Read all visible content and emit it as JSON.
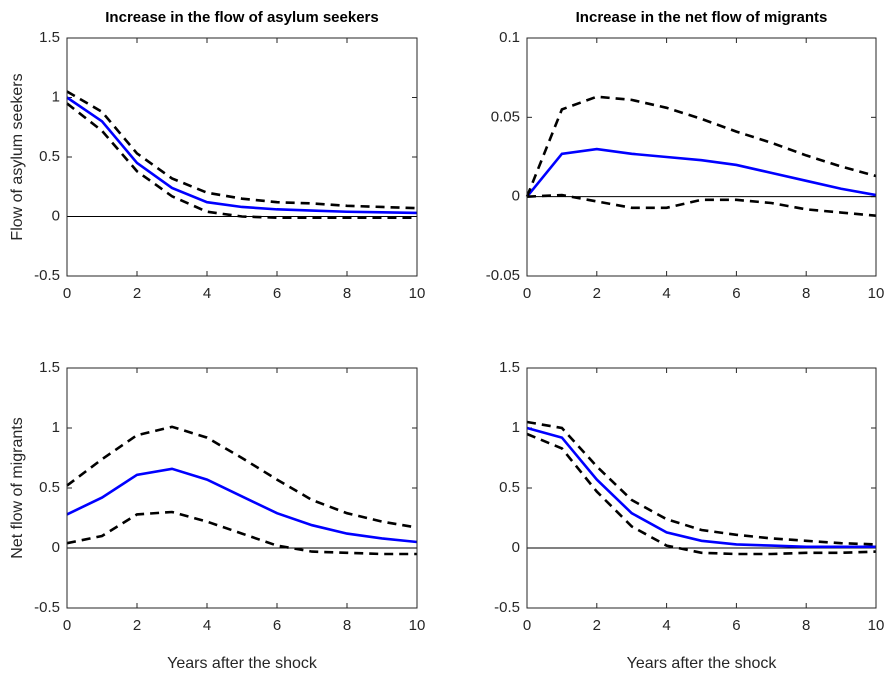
{
  "chart_data": [
    {
      "type": "line",
      "title": "Increase in the flow of asylum seekers",
      "y_label": "Flow of asylum seekers",
      "x": [
        0,
        1,
        2,
        3,
        4,
        5,
        6,
        7,
        8,
        9,
        10
      ],
      "xlim": [
        0,
        10
      ],
      "xticks": [
        0,
        2,
        4,
        6,
        8,
        10
      ],
      "ylim": [
        -0.5,
        1.5
      ],
      "yticks": [
        -0.5,
        0,
        0.5,
        1,
        1.5
      ],
      "reference_line": 0,
      "series": [
        {
          "color": "#0000ff",
          "style": "solid",
          "values": [
            1.0,
            0.8,
            0.45,
            0.24,
            0.12,
            0.08,
            0.06,
            0.05,
            0.04,
            0.035,
            0.03
          ]
        },
        {
          "color": "#000000",
          "style": "dashed",
          "values": [
            1.05,
            0.88,
            0.53,
            0.32,
            0.2,
            0.15,
            0.12,
            0.11,
            0.09,
            0.08,
            0.07
          ]
        },
        {
          "color": "#000000",
          "style": "dashed",
          "values": [
            0.95,
            0.72,
            0.38,
            0.17,
            0.04,
            0.0,
            -0.01,
            -0.01,
            -0.01,
            -0.01,
            -0.01
          ]
        }
      ]
    },
    {
      "type": "line",
      "title": "Increase in the net flow of  migrants",
      "x": [
        0,
        1,
        2,
        3,
        4,
        5,
        6,
        7,
        8,
        9,
        10
      ],
      "xlim": [
        0,
        10
      ],
      "xticks": [
        0,
        2,
        4,
        6,
        8,
        10
      ],
      "ylim": [
        -0.05,
        0.1
      ],
      "yticks": [
        -0.05,
        0,
        0.05,
        0.1
      ],
      "reference_line": 0,
      "series": [
        {
          "color": "#0000ff",
          "style": "solid",
          "values": [
            0,
            0.027,
            0.03,
            0.027,
            0.025,
            0.023,
            0.02,
            0.015,
            0.01,
            0.005,
            0.001
          ]
        },
        {
          "color": "#000000",
          "style": "dashed",
          "values": [
            0,
            0.055,
            0.063,
            0.061,
            0.056,
            0.049,
            0.041,
            0.034,
            0.026,
            0.019,
            0.013
          ]
        },
        {
          "color": "#000000",
          "style": "dashed",
          "values": [
            0,
            0.001,
            -0.003,
            -0.007,
            -0.007,
            -0.002,
            -0.002,
            -0.004,
            -0.008,
            -0.01,
            -0.012
          ]
        }
      ]
    },
    {
      "type": "line",
      "y_label": "Net flow of  migrants",
      "x_label": "Years after the shock",
      "x": [
        0,
        1,
        2,
        3,
        4,
        5,
        6,
        7,
        8,
        9,
        10
      ],
      "xlim": [
        0,
        10
      ],
      "xticks": [
        0,
        2,
        4,
        6,
        8,
        10
      ],
      "ylim": [
        -0.5,
        1.5
      ],
      "yticks": [
        -0.5,
        0,
        0.5,
        1,
        1.5
      ],
      "reference_line": 0,
      "series": [
        {
          "color": "#0000ff",
          "style": "solid",
          "values": [
            0.28,
            0.42,
            0.61,
            0.66,
            0.57,
            0.43,
            0.29,
            0.19,
            0.12,
            0.08,
            0.05
          ]
        },
        {
          "color": "#000000",
          "style": "dashed",
          "values": [
            0.52,
            0.74,
            0.94,
            1.01,
            0.92,
            0.75,
            0.57,
            0.4,
            0.29,
            0.22,
            0.17
          ]
        },
        {
          "color": "#000000",
          "style": "dashed",
          "values": [
            0.04,
            0.1,
            0.28,
            0.3,
            0.22,
            0.12,
            0.02,
            -0.03,
            -0.04,
            -0.05,
            -0.05
          ]
        }
      ]
    },
    {
      "type": "line",
      "x_label": "Years after the shock",
      "x": [
        0,
        1,
        2,
        3,
        4,
        5,
        6,
        7,
        8,
        9,
        10
      ],
      "xlim": [
        0,
        10
      ],
      "xticks": [
        0,
        2,
        4,
        6,
        8,
        10
      ],
      "ylim": [
        -0.5,
        1.5
      ],
      "yticks": [
        -0.5,
        0,
        0.5,
        1,
        1.5
      ],
      "reference_line": 0,
      "series": [
        {
          "color": "#0000ff",
          "style": "solid",
          "values": [
            1.0,
            0.92,
            0.57,
            0.29,
            0.13,
            0.06,
            0.03,
            0.02,
            0.01,
            0.01,
            0.01
          ]
        },
        {
          "color": "#000000",
          "style": "dashed",
          "values": [
            1.05,
            1.0,
            0.68,
            0.4,
            0.24,
            0.15,
            0.11,
            0.08,
            0.06,
            0.04,
            0.03
          ]
        },
        {
          "color": "#000000",
          "style": "dashed",
          "values": [
            0.95,
            0.83,
            0.47,
            0.18,
            0.02,
            -0.04,
            -0.05,
            -0.05,
            -0.04,
            -0.04,
            -0.03
          ]
        }
      ]
    }
  ]
}
